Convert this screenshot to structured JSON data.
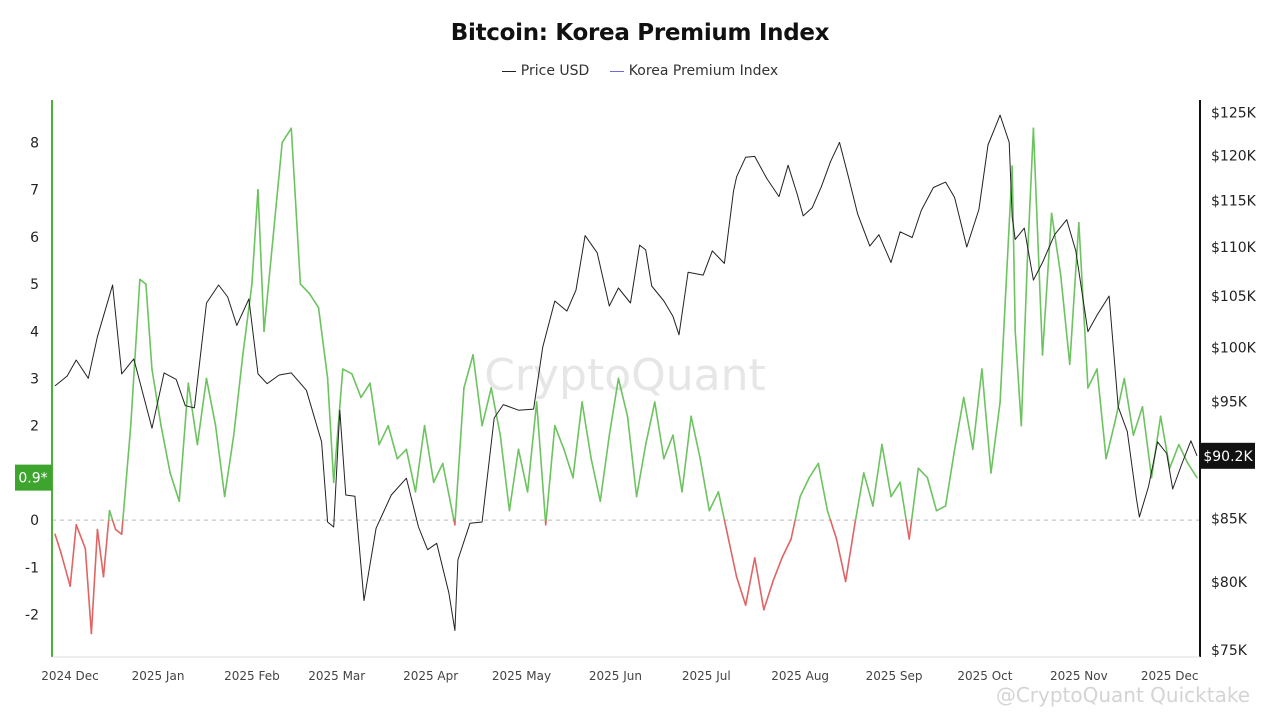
{
  "chart_data": {
    "type": "line",
    "title": "Bitcoin: Korea Premium Index",
    "watermark": "CryptoQuant",
    "watermark_footer": "@CryptoQuant Quicktake",
    "legend": {
      "placement": "top-center",
      "items": [
        "Price USD",
        "Korea Premium Index"
      ]
    },
    "colors": {
      "price": "#222222",
      "premium_positive": "#6cc35f",
      "premium_negative": "#e06464",
      "legend_kpi": "#6a6adb",
      "left_axis": "#4caf3a",
      "badge_left": "#3da52e",
      "badge_right": "#111111"
    },
    "x_ticks": [
      "2024 Dec",
      "2025 Jan",
      "2025 Feb",
      "2025 Mar",
      "2025 Apr",
      "2025 May",
      "2025 Jun",
      "2025 Jul",
      "2025 Aug",
      "2025 Sep",
      "2025 Oct",
      "2025 Nov",
      "2025 Dec"
    ],
    "x_tick_dates": [
      "2024-12-01",
      "2025-01-01",
      "2025-02-01",
      "2025-03-01",
      "2025-04-01",
      "2025-05-01",
      "2025-06-01",
      "2025-07-01",
      "2025-08-01",
      "2025-09-01",
      "2025-10-01",
      "2025-11-01",
      "2025-12-01"
    ],
    "x_range": [
      "2024-11-27",
      "2025-12-11"
    ],
    "left_axis": {
      "label": "",
      "ticks": [
        -2,
        -1,
        0,
        1,
        2,
        3,
        4,
        5,
        6,
        7,
        8
      ],
      "range": [
        -2.9,
        8.9
      ],
      "zero_line": "dashed"
    },
    "right_axis": {
      "label": "",
      "scale": "log",
      "ticks": [
        75000,
        80000,
        85000,
        90000,
        95000,
        100000,
        105000,
        110000,
        115000,
        120000,
        125000
      ],
      "tick_labels": [
        "$75K",
        "$80K",
        "$85K",
        "",
        "$95K",
        "$100K",
        "$105K",
        "$110K",
        "$115K",
        "$120K",
        "$125K"
      ],
      "range": [
        74500,
        126500
      ]
    },
    "current_values": {
      "premium_label": "0.9*",
      "premium": 0.9,
      "price_label": "$90.2K",
      "price": 90200
    },
    "grid": false,
    "series": [
      {
        "name": "Price USD",
        "axis": "right",
        "x": [
          "2024-11-28",
          "2024-12-02",
          "2024-12-05",
          "2024-12-09",
          "2024-12-12",
          "2024-12-17",
          "2024-12-20",
          "2024-12-24",
          "2024-12-30",
          "2025-01-03",
          "2025-01-07",
          "2025-01-10",
          "2025-01-13",
          "2025-01-17",
          "2025-01-21",
          "2025-01-24",
          "2025-01-27",
          "2025-01-31",
          "2025-02-03",
          "2025-02-06",
          "2025-02-10",
          "2025-02-14",
          "2025-02-19",
          "2025-02-24",
          "2025-02-26",
          "2025-02-28",
          "2025-03-02",
          "2025-03-04",
          "2025-03-07",
          "2025-03-10",
          "2025-03-14",
          "2025-03-19",
          "2025-03-24",
          "2025-03-28",
          "2025-03-31",
          "2025-04-03",
          "2025-04-07",
          "2025-04-09",
          "2025-04-10",
          "2025-04-14",
          "2025-04-18",
          "2025-04-22",
          "2025-04-25",
          "2025-04-30",
          "2025-05-05",
          "2025-05-08",
          "2025-05-12",
          "2025-05-16",
          "2025-05-19",
          "2025-05-22",
          "2025-05-26",
          "2025-05-30",
          "2025-06-02",
          "2025-06-06",
          "2025-06-09",
          "2025-06-11",
          "2025-06-13",
          "2025-06-17",
          "2025-06-20",
          "2025-06-22",
          "2025-06-25",
          "2025-06-30",
          "2025-07-03",
          "2025-07-07",
          "2025-07-10",
          "2025-07-11",
          "2025-07-14",
          "2025-07-17",
          "2025-07-21",
          "2025-07-25",
          "2025-07-28",
          "2025-07-31",
          "2025-08-02",
          "2025-08-05",
          "2025-08-08",
          "2025-08-11",
          "2025-08-14",
          "2025-08-17",
          "2025-08-20",
          "2025-08-24",
          "2025-08-27",
          "2025-08-31",
          "2025-09-03",
          "2025-09-07",
          "2025-09-10",
          "2025-09-14",
          "2025-09-18",
          "2025-09-21",
          "2025-09-25",
          "2025-09-29",
          "2025-10-02",
          "2025-10-06",
          "2025-10-09",
          "2025-10-10",
          "2025-10-11",
          "2025-10-14",
          "2025-10-17",
          "2025-10-20",
          "2025-10-24",
          "2025-10-28",
          "2025-10-31",
          "2025-11-04",
          "2025-11-07",
          "2025-11-11",
          "2025-11-14",
          "2025-11-17",
          "2025-11-20",
          "2025-11-21",
          "2025-11-24",
          "2025-11-27",
          "2025-11-30",
          "2025-12-02",
          "2025-12-05",
          "2025-12-08",
          "2025-12-10"
        ],
        "values": [
          96400,
          97300,
          98800,
          97100,
          101000,
          106100,
          97500,
          98900,
          92600,
          97600,
          97000,
          94600,
          94400,
          104300,
          106100,
          104900,
          102100,
          104700,
          97500,
          96600,
          97400,
          97600,
          96000,
          91400,
          84700,
          84300,
          94200,
          86900,
          86800,
          78600,
          84200,
          86900,
          88300,
          84300,
          82500,
          83000,
          79200,
          76400,
          81700,
          84600,
          84700,
          93500,
          94700,
          94200,
          94300,
          100000,
          104500,
          103500,
          105600,
          111200,
          109400,
          104000,
          105800,
          104300,
          110200,
          109700,
          106000,
          104500,
          103000,
          101200,
          107400,
          107100,
          109600,
          108300,
          116000,
          117600,
          119800,
          119900,
          117400,
          115400,
          118900,
          115700,
          113300,
          114200,
          116500,
          119300,
          121500,
          117500,
          113500,
          110100,
          111300,
          108400,
          111600,
          111000,
          113900,
          116400,
          117000,
          115300,
          110000,
          114000,
          121200,
          124700,
          121500,
          113200,
          110800,
          112000,
          106600,
          108400,
          111300,
          112900,
          109600,
          101500,
          103100,
          105000,
          94500,
          92300,
          86600,
          85100,
          87600,
          91400,
          90400,
          87400,
          89500,
          91500,
          90200
        ]
      },
      {
        "name": "Korea Premium Index",
        "axis": "left",
        "x": [
          "2024-11-28",
          "2024-11-30",
          "2024-12-03",
          "2024-12-05",
          "2024-12-08",
          "2024-12-10",
          "2024-12-12",
          "2024-12-14",
          "2024-12-16",
          "2024-12-18",
          "2024-12-20",
          "2024-12-23",
          "2024-12-26",
          "2024-12-28",
          "2024-12-30",
          "2025-01-02",
          "2025-01-05",
          "2025-01-08",
          "2025-01-11",
          "2025-01-14",
          "2025-01-17",
          "2025-01-20",
          "2025-01-23",
          "2025-01-26",
          "2025-01-29",
          "2025-02-01",
          "2025-02-03",
          "2025-02-05",
          "2025-02-08",
          "2025-02-11",
          "2025-02-14",
          "2025-02-17",
          "2025-02-20",
          "2025-02-23",
          "2025-02-26",
          "2025-02-28",
          "2025-03-03",
          "2025-03-06",
          "2025-03-09",
          "2025-03-12",
          "2025-03-15",
          "2025-03-18",
          "2025-03-21",
          "2025-03-24",
          "2025-03-27",
          "2025-03-30",
          "2025-04-02",
          "2025-04-05",
          "2025-04-09",
          "2025-04-12",
          "2025-04-15",
          "2025-04-18",
          "2025-04-21",
          "2025-04-24",
          "2025-04-27",
          "2025-04-30",
          "2025-05-03",
          "2025-05-06",
          "2025-05-09",
          "2025-05-12",
          "2025-05-15",
          "2025-05-18",
          "2025-05-21",
          "2025-05-24",
          "2025-05-27",
          "2025-05-30",
          "2025-06-02",
          "2025-06-05",
          "2025-06-08",
          "2025-06-11",
          "2025-06-14",
          "2025-06-17",
          "2025-06-20",
          "2025-06-23",
          "2025-06-26",
          "2025-06-29",
          "2025-07-02",
          "2025-07-05",
          "2025-07-08",
          "2025-07-11",
          "2025-07-14",
          "2025-07-17",
          "2025-07-20",
          "2025-07-23",
          "2025-07-26",
          "2025-07-29",
          "2025-08-01",
          "2025-08-04",
          "2025-08-07",
          "2025-08-10",
          "2025-08-13",
          "2025-08-16",
          "2025-08-19",
          "2025-08-22",
          "2025-08-25",
          "2025-08-28",
          "2025-08-31",
          "2025-09-03",
          "2025-09-06",
          "2025-09-09",
          "2025-09-12",
          "2025-09-15",
          "2025-09-18",
          "2025-09-21",
          "2025-09-24",
          "2025-09-27",
          "2025-09-30",
          "2025-10-03",
          "2025-10-06",
          "2025-10-08",
          "2025-10-10",
          "2025-10-11",
          "2025-10-13",
          "2025-10-15",
          "2025-10-17",
          "2025-10-20",
          "2025-10-23",
          "2025-10-26",
          "2025-10-29",
          "2025-11-01",
          "2025-11-04",
          "2025-11-07",
          "2025-11-10",
          "2025-11-13",
          "2025-11-16",
          "2025-11-19",
          "2025-11-22",
          "2025-11-25",
          "2025-11-28",
          "2025-12-01",
          "2025-12-04",
          "2025-12-07",
          "2025-12-10"
        ],
        "values": [
          -0.3,
          -0.7,
          -1.4,
          -0.1,
          -0.6,
          -2.4,
          -0.2,
          -1.2,
          0.2,
          -0.2,
          -0.3,
          2.0,
          5.1,
          5.0,
          3.2,
          2.0,
          1.0,
          0.4,
          2.9,
          1.6,
          3.0,
          2.0,
          0.5,
          1.8,
          3.5,
          5.0,
          7.0,
          4.0,
          6.0,
          8.0,
          8.3,
          5.0,
          4.8,
          4.5,
          3.0,
          0.8,
          3.2,
          3.1,
          2.6,
          2.9,
          1.6,
          2.0,
          1.3,
          1.5,
          0.6,
          2.0,
          0.8,
          1.2,
          -0.1,
          2.8,
          3.5,
          2.0,
          2.8,
          1.8,
          0.2,
          1.5,
          0.6,
          2.5,
          -0.1,
          2.0,
          1.5,
          0.9,
          2.5,
          1.3,
          0.4,
          1.8,
          3.0,
          2.2,
          0.5,
          1.6,
          2.5,
          1.3,
          1.8,
          0.6,
          2.2,
          1.3,
          0.2,
          0.6,
          -0.3,
          -1.2,
          -1.8,
          -0.8,
          -1.9,
          -1.3,
          -0.8,
          -0.4,
          0.5,
          0.9,
          1.2,
          0.2,
          -0.4,
          -1.3,
          -0.1,
          1.0,
          0.3,
          1.6,
          0.5,
          0.8,
          -0.4,
          1.1,
          0.9,
          0.2,
          0.3,
          1.5,
          2.6,
          1.5,
          3.2,
          1.0,
          2.5,
          5.0,
          7.5,
          4.0,
          2.0,
          5.5,
          8.3,
          3.5,
          6.5,
          5.2,
          3.3,
          6.3,
          2.8,
          3.2,
          1.3,
          2.1,
          3.0,
          1.8,
          2.4,
          0.9,
          2.2,
          1.1,
          1.6,
          1.2,
          0.9
        ]
      }
    ]
  }
}
